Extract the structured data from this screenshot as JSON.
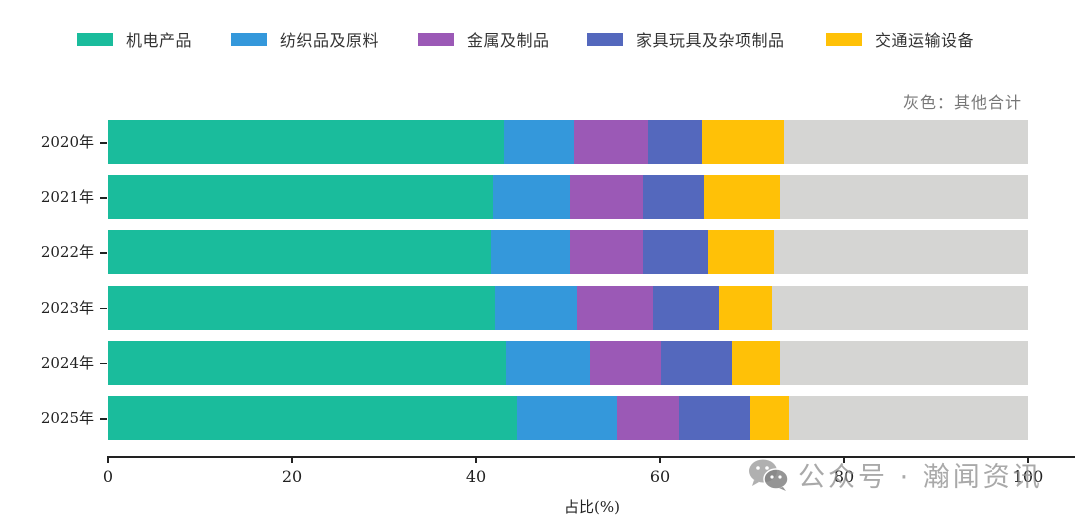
{
  "legend": [
    {
      "label": "机电产品",
      "color": "#1abc9c"
    },
    {
      "label": "纺织品及原料",
      "color": "#3498db"
    },
    {
      "label": "金属及制品",
      "color": "#9b59b6"
    },
    {
      "label": "家具玩具及杂项制品",
      "color": "#5468bd"
    },
    {
      "label": "交通运输设备",
      "color": "#ffc107"
    }
  ],
  "note": "灰色：其他合计",
  "other_color": "#d5d5d3",
  "x_axis": {
    "label": "占比(%)",
    "ticks": [
      "0",
      "20",
      "40",
      "60",
      "80",
      "100"
    ]
  },
  "watermark": "公众号 · 瀚闻资讯",
  "chart_data": {
    "type": "bar",
    "orientation": "horizontal",
    "stacked": true,
    "title": "",
    "xlabel": "占比(%)",
    "ylabel": "",
    "xlim": [
      0,
      100
    ],
    "categories": [
      "2020年",
      "2021年",
      "2022年",
      "2023年",
      "2024年",
      "2025年"
    ],
    "series": [
      {
        "name": "机电产品",
        "color": "#1abc9c",
        "values": [
          43.0,
          41.8,
          41.6,
          42.1,
          43.3,
          44.5
        ]
      },
      {
        "name": "纺织品及原料",
        "color": "#3498db",
        "values": [
          7.7,
          8.4,
          8.6,
          8.9,
          9.1,
          10.8
        ]
      },
      {
        "name": "金属及制品",
        "color": "#9b59b6",
        "values": [
          8.0,
          8.0,
          7.9,
          8.3,
          7.7,
          6.8
        ]
      },
      {
        "name": "家具玩具及杂项制品",
        "color": "#5468bd",
        "values": [
          5.9,
          6.6,
          7.1,
          7.2,
          7.7,
          7.7
        ]
      },
      {
        "name": "交通运输设备",
        "color": "#ffc107",
        "values": [
          8.9,
          8.2,
          7.2,
          5.7,
          5.2,
          4.2
        ]
      },
      {
        "name": "其他合计",
        "color": "#d5d5d3",
        "values": [
          26.5,
          27.0,
          27.6,
          27.9,
          27.0,
          26.0
        ]
      }
    ],
    "annotations": [
      "灰色：其他合计"
    ],
    "legend_position": "top",
    "grid": false
  }
}
